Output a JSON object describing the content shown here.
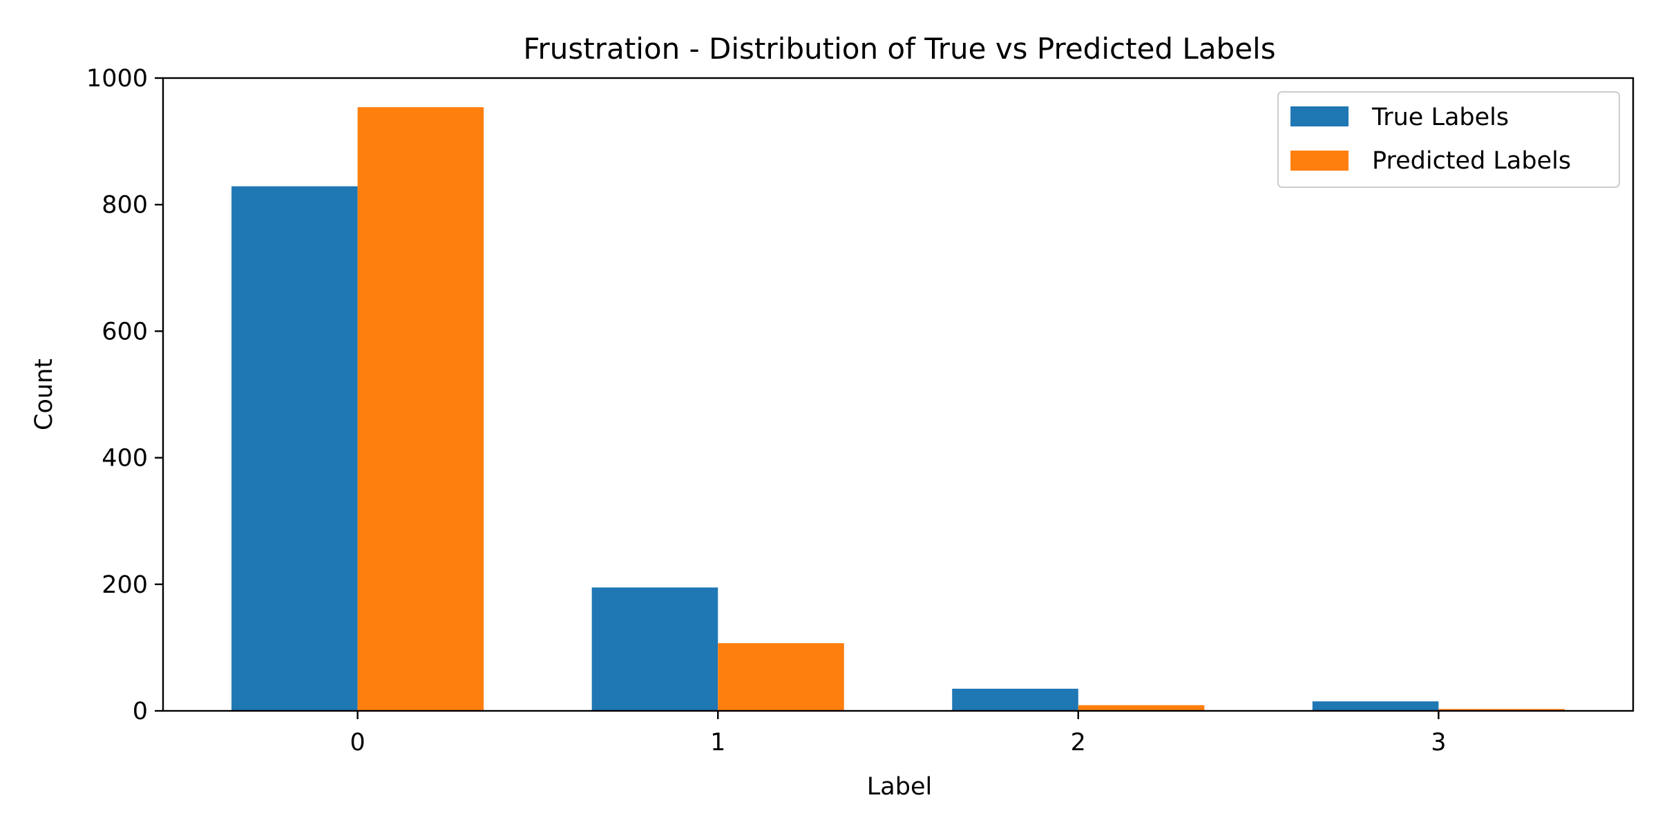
{
  "chart_data": {
    "type": "bar",
    "title": "Frustration - Distribution of True vs Predicted Labels",
    "xlabel": "Label",
    "ylabel": "Count",
    "categories": [
      "0",
      "1",
      "2",
      "3"
    ],
    "series": [
      {
        "name": "True Labels",
        "values": [
          829,
          195,
          35,
          15
        ],
        "color": "#1f77b4"
      },
      {
        "name": "Predicted Labels",
        "values": [
          954,
          107,
          9,
          3
        ],
        "color": "#ff7f0e"
      }
    ],
    "ylim": [
      0,
      1000
    ],
    "yticks": [
      0,
      200,
      400,
      600,
      800,
      1000
    ],
    "grid": false,
    "legend_position": "top-right"
  }
}
